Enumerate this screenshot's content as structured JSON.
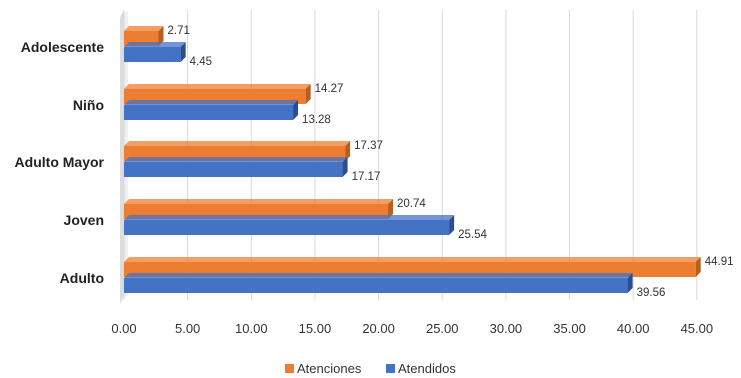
{
  "chart_data": {
    "type": "bar",
    "orientation": "horizontal",
    "categories": [
      "Adolescente",
      "Niño",
      "Adulto Mayor",
      "Joven",
      "Adulto"
    ],
    "series": [
      {
        "name": "Atenciones",
        "values": [
          2.71,
          14.27,
          17.37,
          20.74,
          44.91
        ],
        "color": "#ED7D31",
        "side_color": "#B85F1F"
      },
      {
        "name": "Atendidos",
        "values": [
          4.45,
          13.28,
          17.17,
          25.54,
          39.56
        ],
        "color": "#4472C4",
        "side_color": "#2B4E8F"
      }
    ],
    "xlim": [
      0,
      45
    ],
    "x_ticks": [
      "0.00",
      "5.00",
      "10.00",
      "15.00",
      "20.00",
      "25.00",
      "30.00",
      "35.00",
      "40.00",
      "45.00"
    ],
    "data_labels": [
      [
        "2.71",
        "14.27",
        "17.37",
        "20.74",
        "44.91"
      ],
      [
        "4.45",
        "13.28",
        "17.17",
        "25.54",
        "39.56"
      ]
    ],
    "grid": true,
    "legend_position": "bottom",
    "title": "",
    "xlabel": "",
    "ylabel": ""
  }
}
